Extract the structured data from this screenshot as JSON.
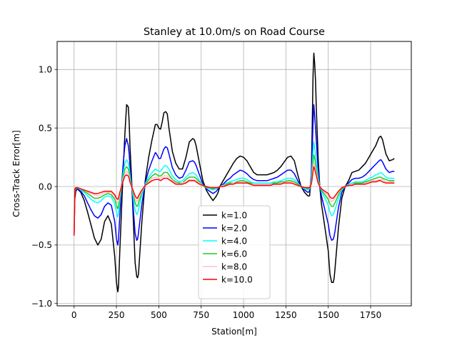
{
  "chart_data": {
    "type": "line",
    "title": "Stanley at 10.0m/s on Road Course",
    "xlabel": "Station[m]",
    "ylabel": "Cross-Track Error[m]",
    "xlim": [
      -100,
      1990
    ],
    "ylim": [
      -1.02,
      1.24
    ],
    "xticks": [
      0,
      250,
      500,
      750,
      1000,
      1250,
      1500,
      1750
    ],
    "yticks": [
      -1.0,
      -0.5,
      0.0,
      0.5,
      1.0
    ],
    "xtick_labels": [
      "0",
      "250",
      "500",
      "750",
      "1000",
      "1250",
      "1500",
      "1750"
    ],
    "ytick_labels": [
      "−1.0",
      "−0.5",
      "0.0",
      "0.5",
      "1.0"
    ],
    "grid": true,
    "legend_position": "lower center",
    "x": [
      0,
      5,
      10,
      20,
      40,
      60,
      80,
      100,
      120,
      140,
      160,
      180,
      200,
      220,
      240,
      250,
      258,
      262,
      270,
      280,
      290,
      300,
      310,
      320,
      325,
      330,
      340,
      350,
      360,
      370,
      375,
      380,
      400,
      420,
      440,
      460,
      480,
      490,
      500,
      510,
      520,
      530,
      540,
      550,
      560,
      580,
      600,
      620,
      640,
      660,
      680,
      700,
      710,
      720,
      740,
      760,
      780,
      800,
      820,
      840,
      850,
      860,
      880,
      900,
      920,
      940,
      960,
      980,
      1000,
      1020,
      1040,
      1060,
      1080,
      1100,
      1120,
      1140,
      1160,
      1180,
      1200,
      1220,
      1240,
      1260,
      1280,
      1300,
      1320,
      1340,
      1360,
      1380,
      1390,
      1400,
      1405,
      1410,
      1415,
      1420,
      1425,
      1430,
      1440,
      1450,
      1460,
      1480,
      1500,
      1510,
      1520,
      1530,
      1535,
      1540,
      1560,
      1580,
      1600,
      1620,
      1640,
      1660,
      1680,
      1700,
      1720,
      1740,
      1760,
      1780,
      1800,
      1810,
      1820,
      1840,
      1860,
      1880,
      1890
    ],
    "series": [
      {
        "name": "k=1.0",
        "color": "#000000",
        "values": [
          -0.42,
          -0.1,
          -0.04,
          -0.02,
          -0.05,
          -0.12,
          -0.22,
          -0.33,
          -0.44,
          -0.5,
          -0.45,
          -0.3,
          -0.25,
          -0.32,
          -0.6,
          -0.82,
          -0.9,
          -0.86,
          -0.55,
          -0.2,
          0.15,
          0.45,
          0.7,
          0.68,
          0.55,
          0.35,
          0.05,
          -0.3,
          -0.65,
          -0.77,
          -0.78,
          -0.75,
          -0.3,
          0.05,
          0.25,
          0.4,
          0.53,
          0.53,
          0.5,
          0.49,
          0.55,
          0.63,
          0.64,
          0.62,
          0.5,
          0.3,
          0.2,
          0.15,
          0.15,
          0.25,
          0.38,
          0.41,
          0.4,
          0.35,
          0.2,
          0.05,
          -0.03,
          -0.08,
          -0.12,
          -0.08,
          -0.05,
          0.0,
          0.05,
          0.1,
          0.15,
          0.2,
          0.24,
          0.26,
          0.25,
          0.22,
          0.17,
          0.12,
          0.1,
          0.1,
          0.1,
          0.1,
          0.11,
          0.12,
          0.14,
          0.17,
          0.21,
          0.25,
          0.26,
          0.22,
          0.1,
          0.0,
          -0.05,
          -0.08,
          -0.08,
          0.1,
          0.5,
          0.95,
          1.14,
          1.05,
          0.9,
          0.65,
          0.25,
          0.0,
          -0.15,
          -0.35,
          -0.55,
          -0.75,
          -0.82,
          -0.82,
          -0.78,
          -0.7,
          -0.35,
          -0.1,
          0.0,
          0.05,
          0.12,
          0.13,
          0.14,
          0.17,
          0.2,
          0.25,
          0.3,
          0.35,
          0.42,
          0.43,
          0.4,
          0.28,
          0.22,
          0.23,
          0.24
        ]
      },
      {
        "name": "k=2.0",
        "color": "#0000ff",
        "values": [
          -0.42,
          -0.06,
          -0.03,
          -0.02,
          -0.04,
          -0.08,
          -0.14,
          -0.2,
          -0.25,
          -0.27,
          -0.24,
          -0.17,
          -0.14,
          -0.16,
          -0.3,
          -0.45,
          -0.5,
          -0.45,
          -0.25,
          0.0,
          0.2,
          0.35,
          0.41,
          0.35,
          0.28,
          0.18,
          0.0,
          -0.2,
          -0.4,
          -0.46,
          -0.45,
          -0.4,
          -0.15,
          0.03,
          0.14,
          0.22,
          0.29,
          0.27,
          0.24,
          0.24,
          0.28,
          0.32,
          0.34,
          0.33,
          0.28,
          0.16,
          0.1,
          0.07,
          0.08,
          0.14,
          0.21,
          0.22,
          0.21,
          0.18,
          0.1,
          0.02,
          -0.02,
          -0.04,
          -0.06,
          -0.04,
          -0.02,
          0.0,
          0.02,
          0.05,
          0.07,
          0.1,
          0.12,
          0.14,
          0.13,
          0.11,
          0.08,
          0.06,
          0.05,
          0.05,
          0.05,
          0.05,
          0.06,
          0.07,
          0.08,
          0.1,
          0.12,
          0.14,
          0.14,
          0.11,
          0.05,
          0.0,
          -0.03,
          -0.05,
          -0.04,
          0.1,
          0.3,
          0.55,
          0.7,
          0.6,
          0.5,
          0.38,
          0.15,
          0.0,
          -0.08,
          -0.2,
          -0.32,
          -0.42,
          -0.46,
          -0.45,
          -0.42,
          -0.38,
          -0.18,
          -0.05,
          0.0,
          0.03,
          0.06,
          0.07,
          0.07,
          0.08,
          0.1,
          0.13,
          0.16,
          0.19,
          0.22,
          0.23,
          0.21,
          0.15,
          0.12,
          0.13,
          0.13
        ]
      },
      {
        "name": "k=4.0",
        "color": "#00ffff",
        "values": [
          -0.42,
          -0.04,
          -0.02,
          -0.01,
          -0.03,
          -0.05,
          -0.08,
          -0.11,
          -0.13,
          -0.14,
          -0.12,
          -0.09,
          -0.08,
          -0.09,
          -0.15,
          -0.22,
          -0.26,
          -0.23,
          -0.12,
          0.0,
          0.12,
          0.2,
          0.23,
          0.2,
          0.16,
          0.1,
          0.0,
          -0.1,
          -0.2,
          -0.24,
          -0.23,
          -0.2,
          -0.07,
          0.02,
          0.08,
          0.12,
          0.15,
          0.14,
          0.13,
          0.13,
          0.15,
          0.17,
          0.18,
          0.17,
          0.15,
          0.09,
          0.06,
          0.04,
          0.05,
          0.08,
          0.11,
          0.12,
          0.11,
          0.1,
          0.05,
          0.01,
          -0.01,
          -0.02,
          -0.03,
          -0.02,
          -0.01,
          0.0,
          0.01,
          0.03,
          0.04,
          0.05,
          0.06,
          0.07,
          0.07,
          0.06,
          0.04,
          0.03,
          0.03,
          0.03,
          0.03,
          0.03,
          0.03,
          0.04,
          0.04,
          0.05,
          0.06,
          0.07,
          0.07,
          0.06,
          0.03,
          0.0,
          -0.02,
          -0.03,
          -0.02,
          0.06,
          0.17,
          0.3,
          0.38,
          0.33,
          0.28,
          0.2,
          0.08,
          0.0,
          -0.04,
          -0.1,
          -0.16,
          -0.22,
          -0.25,
          -0.24,
          -0.22,
          -0.2,
          -0.1,
          -0.03,
          0.0,
          0.02,
          0.03,
          0.04,
          0.04,
          0.04,
          0.05,
          0.07,
          0.08,
          0.1,
          0.11,
          0.12,
          0.11,
          0.08,
          0.07,
          0.07,
          0.07
        ]
      },
      {
        "name": "k=6.0",
        "color": "#22cc22",
        "values": [
          -0.42,
          -0.03,
          -0.02,
          -0.01,
          -0.02,
          -0.04,
          -0.06,
          -0.08,
          -0.1,
          -0.1,
          -0.09,
          -0.07,
          -0.06,
          -0.07,
          -0.11,
          -0.16,
          -0.19,
          -0.17,
          -0.09,
          0.0,
          0.09,
          0.15,
          0.17,
          0.15,
          0.12,
          0.07,
          0.0,
          -0.07,
          -0.14,
          -0.17,
          -0.17,
          -0.14,
          -0.05,
          0.01,
          0.06,
          0.09,
          0.11,
          0.1,
          0.09,
          0.09,
          0.1,
          0.12,
          0.12,
          0.12,
          0.1,
          0.06,
          0.04,
          0.03,
          0.03,
          0.06,
          0.08,
          0.08,
          0.08,
          0.07,
          0.04,
          0.01,
          -0.01,
          -0.01,
          -0.02,
          -0.01,
          -0.01,
          0.0,
          0.01,
          0.02,
          0.03,
          0.03,
          0.04,
          0.05,
          0.05,
          0.04,
          0.03,
          0.02,
          0.02,
          0.02,
          0.02,
          0.02,
          0.02,
          0.03,
          0.03,
          0.04,
          0.04,
          0.05,
          0.05,
          0.04,
          0.02,
          0.0,
          -0.01,
          -0.02,
          -0.01,
          0.04,
          0.12,
          0.22,
          0.27,
          0.24,
          0.2,
          0.14,
          0.06,
          0.0,
          -0.03,
          -0.07,
          -0.11,
          -0.15,
          -0.17,
          -0.17,
          -0.15,
          -0.14,
          -0.07,
          -0.02,
          0.0,
          0.01,
          0.02,
          0.03,
          0.03,
          0.03,
          0.04,
          0.05,
          0.06,
          0.07,
          0.08,
          0.08,
          0.07,
          0.06,
          0.05,
          0.05,
          0.05
        ]
      },
      {
        "name": "k=8.0",
        "color": "#ffc0cb",
        "values": [
          -0.42,
          -0.02,
          -0.01,
          -0.01,
          -0.02,
          -0.03,
          -0.05,
          -0.06,
          -0.07,
          -0.08,
          -0.07,
          -0.05,
          -0.05,
          -0.05,
          -0.09,
          -0.12,
          -0.14,
          -0.13,
          -0.07,
          0.0,
          0.07,
          0.11,
          0.13,
          0.11,
          0.09,
          0.05,
          0.0,
          -0.05,
          -0.1,
          -0.13,
          -0.12,
          -0.1,
          -0.04,
          0.01,
          0.04,
          0.07,
          0.08,
          0.08,
          0.07,
          0.07,
          0.08,
          0.09,
          0.09,
          0.09,
          0.08,
          0.05,
          0.03,
          0.02,
          0.03,
          0.04,
          0.06,
          0.06,
          0.06,
          0.05,
          0.03,
          0.01,
          0.0,
          -0.01,
          -0.01,
          -0.01,
          -0.01,
          0.0,
          0.01,
          0.01,
          0.02,
          0.03,
          0.03,
          0.04,
          0.04,
          0.03,
          0.02,
          0.02,
          0.02,
          0.02,
          0.02,
          0.02,
          0.02,
          0.02,
          0.02,
          0.03,
          0.03,
          0.04,
          0.04,
          0.03,
          0.01,
          0.0,
          -0.01,
          -0.01,
          -0.01,
          0.03,
          0.09,
          0.17,
          0.21,
          0.18,
          0.15,
          0.11,
          0.04,
          0.0,
          -0.02,
          -0.05,
          -0.08,
          -0.11,
          -0.13,
          -0.12,
          -0.11,
          -0.1,
          -0.05,
          -0.01,
          0.0,
          0.01,
          0.02,
          0.02,
          0.02,
          0.02,
          0.03,
          0.04,
          0.05,
          0.05,
          0.06,
          0.06,
          0.06,
          0.04,
          0.04,
          0.04,
          0.04
        ]
      },
      {
        "name": "k=10.0",
        "color": "#ff0000",
        "values": [
          -0.42,
          -0.02,
          -0.01,
          -0.01,
          -0.02,
          -0.03,
          -0.04,
          -0.05,
          -0.06,
          -0.06,
          -0.05,
          -0.04,
          -0.04,
          -0.04,
          -0.07,
          -0.1,
          -0.11,
          -0.1,
          -0.05,
          0.0,
          0.05,
          0.09,
          0.1,
          0.09,
          0.07,
          0.04,
          0.0,
          -0.04,
          -0.08,
          -0.1,
          -0.1,
          -0.08,
          -0.03,
          0.01,
          0.03,
          0.05,
          0.06,
          0.06,
          0.06,
          0.05,
          0.06,
          0.07,
          0.07,
          0.07,
          0.06,
          0.04,
          0.02,
          0.02,
          0.02,
          0.03,
          0.05,
          0.05,
          0.05,
          0.04,
          0.02,
          0.01,
          0.0,
          -0.01,
          -0.01,
          -0.01,
          -0.01,
          0.0,
          0.0,
          0.01,
          0.02,
          0.02,
          0.03,
          0.03,
          0.03,
          0.03,
          0.02,
          0.01,
          0.01,
          0.01,
          0.01,
          0.01,
          0.01,
          0.02,
          0.02,
          0.02,
          0.03,
          0.03,
          0.03,
          0.02,
          0.01,
          0.0,
          -0.01,
          -0.01,
          -0.01,
          0.02,
          0.07,
          0.13,
          0.17,
          0.15,
          0.12,
          0.09,
          0.03,
          0.0,
          -0.02,
          -0.04,
          -0.06,
          -0.09,
          -0.1,
          -0.1,
          -0.09,
          -0.08,
          -0.04,
          -0.01,
          0.0,
          0.01,
          0.01,
          0.02,
          0.02,
          0.02,
          0.02,
          0.03,
          0.04,
          0.04,
          0.05,
          0.05,
          0.04,
          0.03,
          0.03,
          0.03,
          0.03
        ]
      }
    ]
  }
}
